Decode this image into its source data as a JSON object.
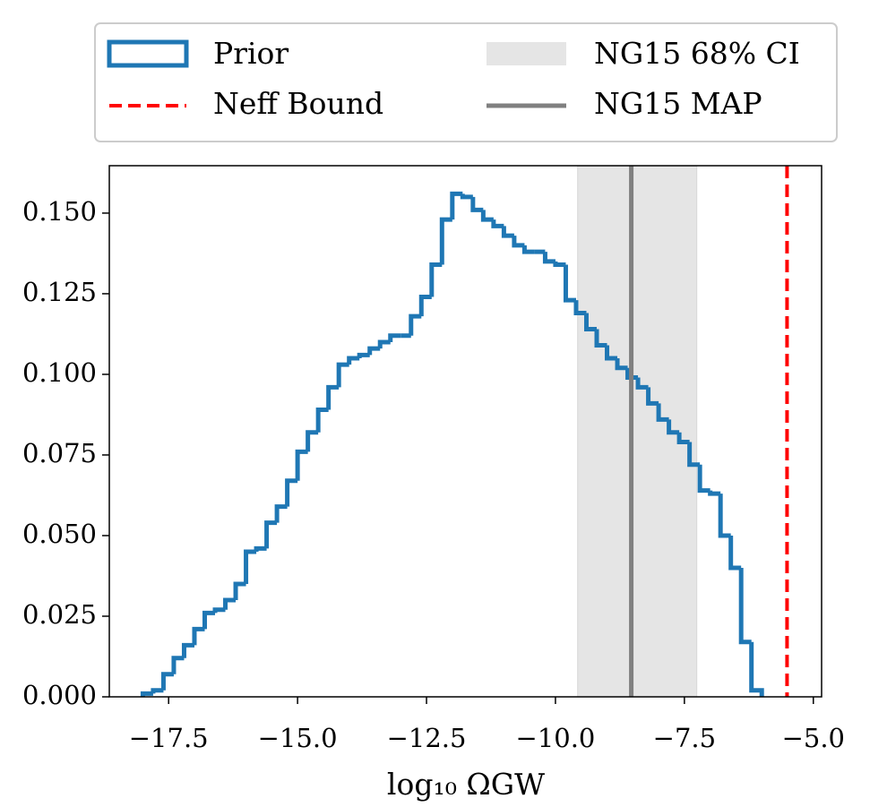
{
  "chart_data": {
    "type": "histogram",
    "xlabel": "log₁₀ ΩGW",
    "name": "Prior",
    "color": "#1f77b4",
    "bins": [
      -18,
      -17.8,
      -17.6,
      -17.4,
      -17.2,
      -17,
      -16.8,
      -16.6,
      -16.4,
      -16.2,
      -16,
      -15.8,
      -15.6,
      -15.4,
      -15.2,
      -15,
      -14.8,
      -14.6,
      -14.4,
      -14.2,
      -14,
      -13.8,
      -13.6,
      -13.4,
      -13.2,
      -13,
      -12.8,
      -12.6,
      -12.4,
      -12.2,
      -12,
      -11.8,
      -11.6,
      -11.4,
      -11.2,
      -11,
      -10.8,
      -10.6,
      -10.4,
      -10.2,
      -10,
      -9.8,
      -9.6,
      -9.4,
      -9.2,
      -9,
      -8.8,
      -8.6,
      -8.4,
      -8.2,
      -8,
      -7.8,
      -7.6,
      -7.4,
      -7.2,
      -7,
      -6.8,
      -6.6,
      -6.4,
      -6.2,
      -6
    ],
    "values": [
      0.001,
      0.002,
      0.007,
      0.012,
      0.016,
      0.021,
      0.026,
      0.027,
      0.03,
      0.035,
      0.045,
      0.046,
      0.054,
      0.059,
      0.067,
      0.076,
      0.082,
      0.089,
      0.096,
      0.103,
      0.105,
      0.106,
      0.108,
      0.11,
      0.112,
      0.112,
      0.118,
      0.124,
      0.134,
      0.148,
      0.156,
      0.155,
      0.151,
      0.148,
      0.146,
      0.143,
      0.14,
      0.138,
      0.138,
      0.135,
      0.134,
      0.123,
      0.119,
      0.114,
      0.109,
      0.105,
      0.102,
      0.099,
      0.096,
      0.091,
      0.086,
      0.082,
      0.079,
      0.072,
      0.064,
      0.063,
      0.05,
      0.04,
      0.017,
      0.002
    ],
    "ci": {
      "name": "NG15 68% CI",
      "range": [
        -9.57,
        -7.26
      ],
      "color": "#e5e5e5"
    },
    "map": {
      "name": "NG15 MAP",
      "value": -8.53,
      "color": "#808080"
    },
    "bound": {
      "name": "Neff Bound",
      "value": -5.51,
      "color": "#ff0000"
    },
    "xlim": [
      -18.65,
      -4.84
    ],
    "ylim": [
      0,
      0.1647
    ],
    "xticks": [
      {
        "value": -17.5,
        "label": "−17.5"
      },
      {
        "value": -15,
        "label": "−15.0"
      },
      {
        "value": -12.5,
        "label": "−12.5"
      },
      {
        "value": -10,
        "label": "−10.0"
      },
      {
        "value": -7.5,
        "label": "−7.5"
      },
      {
        "value": -5,
        "label": "−5.0"
      }
    ],
    "yticks": [
      {
        "value": 0,
        "label": "0.000"
      },
      0.025,
      {
        "value": 0.05,
        "label": "0.050"
      },
      0.075,
      {
        "value": 0.1,
        "label": "0.100"
      },
      0.125,
      {
        "value": 0.15,
        "label": "0.150"
      }
    ]
  }
}
